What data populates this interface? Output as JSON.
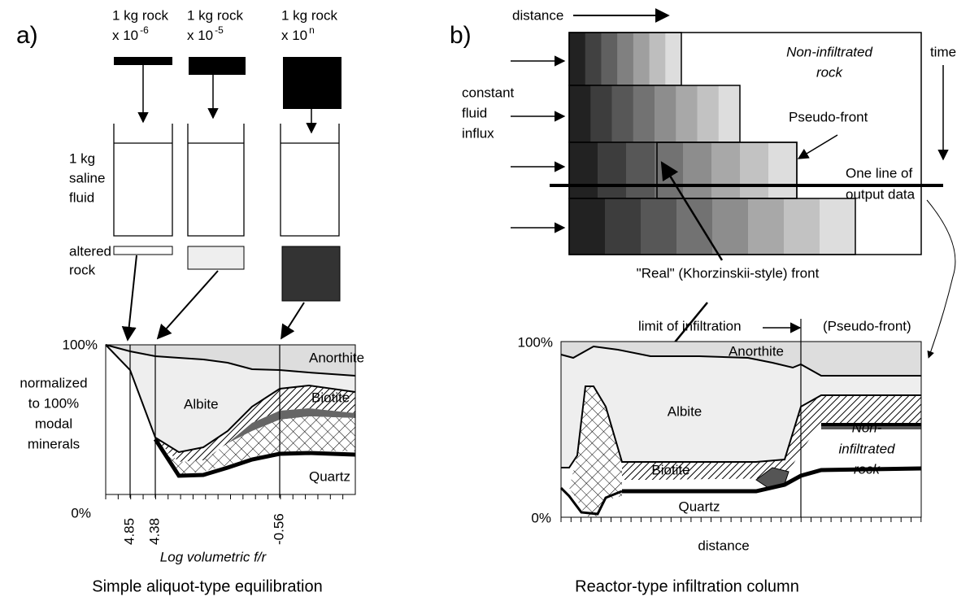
{
  "panel_a": {
    "label": "a)",
    "aliquots": [
      {
        "text": "1 kg rock",
        "factor": "x 10",
        "exponent": "-6"
      },
      {
        "text": "1 kg rock",
        "factor": "x 10",
        "exponent": "-5"
      },
      {
        "text": "1 kg rock",
        "factor": "x 10",
        "exponent": "n"
      }
    ],
    "fluid_label": [
      "1 kg",
      "saline",
      "fluid"
    ],
    "altered_label": [
      "altered",
      "rock"
    ],
    "chart": {
      "y_labels": [
        "100%",
        "0%"
      ],
      "y_title": [
        "normalized",
        "to 100%",
        "modal",
        "minerals"
      ],
      "minerals": [
        "Anorthite",
        "Albite",
        "Biotite",
        "Quartz"
      ],
      "x_labels": [
        "4.85",
        "4.38",
        "-0.56"
      ],
      "x_title": "Log volumetric f/r"
    },
    "caption": "Simple aliquot-type equilibration"
  },
  "panel_b": {
    "label": "b)",
    "distance_label": "distance",
    "time_label": "time",
    "non_infiltrated": [
      "Non-infiltrated",
      "rock"
    ],
    "influx_label": [
      "constant",
      "fluid",
      "influx"
    ],
    "pseudo_front": "Pseudo-front",
    "output_line": [
      "One line of",
      "output data"
    ],
    "real_front": "\"Real\" (Khorzinskii-style) front",
    "chart": {
      "limit": "limit of infiltration",
      "pseudo_front": "(Pseudo-front)",
      "y_labels": [
        "100%",
        "0%"
      ],
      "minerals": [
        "Anorthite",
        "Albite",
        "Biotite",
        "Quartz"
      ],
      "non_infiltrated": [
        "Non-",
        "infiltrated",
        "rock"
      ],
      "x_title": "distance"
    },
    "caption": "Reactor-type infiltration column"
  }
}
